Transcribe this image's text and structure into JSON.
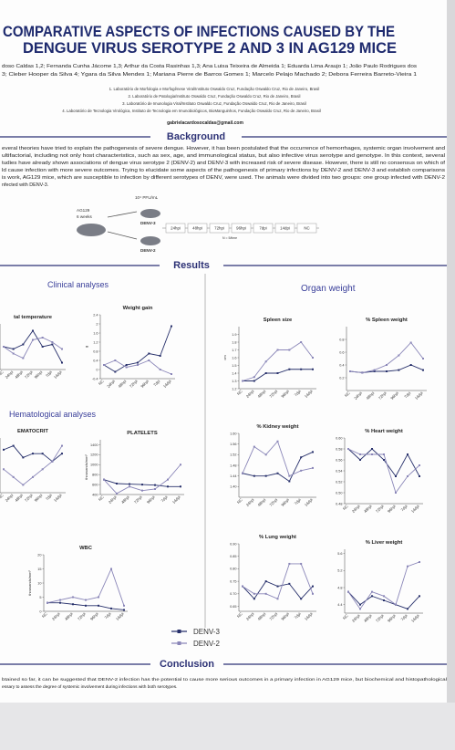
{
  "title_lines": [
    "COMPARATIVE ASPECTS OF INFECTIONS CAUSED BY THE",
    "DENGUE VIRUS SEROTYPE 2 AND 3 IN AG129 MICE"
  ],
  "authors_lines": [
    "doso Caldas 1,2; Fernanda Cunha Jácome 1,3; Arthur da Costa Rasinhas 1,3; Ana Luisa Teixeira de Almeida 1; Eduarda Lima Araujo 1; João Paulo Rodrigues dos",
    "3; Cleber Hooper da Silva 4; Ygara da Silva Mendes 1; Mariana Pierre de Barros Gomes 1; Marcelo Pelajo Machado 2; Debora Ferreira Barreto-Vieira 1"
  ],
  "affiliations": [
    "1. Laboratório de Morfologia e Morfogênese Viral/Instituto Oswaldo Cruz, Fundação Oswaldo Cruz, Rio de Janeiro, Brasil",
    "2. Laboratório de Patologia/Instituto Oswaldo Cruz, Fundação Oswaldo Cruz, Rio de Janeiro, Brasil",
    "3. Laboratório de Imunologia Viral/Instituto Oswaldo Cruz, Fundação Oswaldo Cruz, Rio de Janeiro, Brasil",
    "4. Laboratório de Tecnologia Virológica, Instituto de Tecnologia em Imunobiológicos, BioManguinhos, Fundação Oswaldo Cruz, Rio de Janeiro, Brasil"
  ],
  "email": "gabrielacardosocaldas@gmail.com",
  "sections": {
    "background": "Background",
    "results": "Results",
    "conclusion": "Conclusion"
  },
  "background_lines": [
    "everal theories have tried to explain the pathogenesis of severe dengue. However, it has been postulated that the occurrence of hemorrhages, systemic organ involvement and",
    "ultifactorial, including not only host characteristics, such as sex, age, and immunological status, but also infective virus serotype and genotype. In this context, several",
    "tudies have already shown associations of dengue virus serotype 2 (DENV-2) and DENV-3 with increased risk of severe disease. However, there is still no consensus on which of",
    "ld cause infection with more severe outcomes. Trying to elucidate some aspects of the pathogenesis of primary infections by DENV-2 and DENV-3 and establish comparisons",
    "is work, AG129 mice, which are susceptible to infection by different serotypes of DENV, were used. The animals were divided into two groups: one group infected with DENV-2",
    "nfected with DENV-3."
  ],
  "design": {
    "dose": "10⁴ PFU/mL",
    "mouse": "AG129",
    "age": "6 weeks",
    "groups": [
      "DENV-3",
      "DENV-2"
    ],
    "timepoints": [
      "24hpi",
      "48hpi",
      "72hpi",
      "96hpi",
      "7dpi",
      "14dpi",
      "NC"
    ],
    "n": "N = 5/time"
  },
  "subheadings": {
    "clinical": "Clinical analyses",
    "hematological": "Hematological analyses",
    "organ": "Organ weight"
  },
  "chart_data": [
    {
      "type": "line",
      "title": "tal temperature",
      "categories": [
        "NC",
        "24hpi",
        "48hpi",
        "72hpi",
        "96hpi",
        "7dpi",
        "14dpi"
      ],
      "ylim": [
        35.5,
        37.5
      ],
      "series": [
        {
          "name": "DENV-3",
          "color": "#27306b",
          "values": [
            36.5,
            36.4,
            36.6,
            37.2,
            36.5,
            36.6,
            35.8
          ]
        },
        {
          "name": "DENV-2",
          "color": "#8a86b8",
          "values": [
            36.5,
            36.2,
            36.0,
            36.8,
            36.9,
            36.7,
            36.4
          ]
        }
      ]
    },
    {
      "type": "line",
      "title": "Weight gain",
      "y_label": "g",
      "categories": [
        "NC",
        "24hpi",
        "48hpi",
        "72hpi",
        "96hpi",
        "7dpi",
        "14dpi"
      ],
      "ylim": [
        -0.4,
        2.4
      ],
      "yticks": [
        -0.4,
        0,
        0.4,
        0.8,
        1.2,
        1.6,
        2,
        2.4
      ],
      "series": [
        {
          "name": "DENV-3",
          "color": "#27306b",
          "values": [
            0.2,
            -0.1,
            0.2,
            0.3,
            0.7,
            0.6,
            1.9
          ]
        },
        {
          "name": "DENV-2",
          "color": "#8a86b8",
          "values": [
            0.2,
            0.4,
            0.1,
            0.2,
            0.4,
            0.0,
            -0.2
          ]
        }
      ]
    },
    {
      "type": "line",
      "title": "EMATOCRIT",
      "categories": [
        "NC",
        "24hpi",
        "48hpi",
        "72hpi",
        "96hpi",
        "7dpi",
        "14dpi"
      ],
      "ylim": [
        34,
        48
      ],
      "series": [
        {
          "name": "DENV-3",
          "color": "#27306b",
          "values": [
            45,
            46,
            43,
            44,
            44,
            42,
            44
          ]
        },
        {
          "name": "DENV-2",
          "color": "#8a86b8",
          "values": [
            40,
            38,
            36,
            38,
            40,
            42,
            46
          ]
        }
      ]
    },
    {
      "type": "line",
      "title": "PLATELETS",
      "y_label": "thousands/mm³",
      "categories": [
        "NC",
        "24hpi",
        "48hpi",
        "72hpi",
        "96hpi",
        "7dpi",
        "14dpi"
      ],
      "ylim": [
        400,
        1500
      ],
      "yticks": [
        400,
        600,
        800,
        1000,
        1200,
        1400
      ],
      "series": [
        {
          "name": "DENV-3",
          "color": "#27306b",
          "values": [
            700,
            620,
            610,
            600,
            590,
            560,
            560
          ]
        },
        {
          "name": "DENV-2",
          "color": "#8a86b8",
          "values": [
            700,
            420,
            560,
            480,
            510,
            700,
            1000
          ]
        }
      ]
    },
    {
      "type": "line",
      "title": "WBC",
      "y_label": "thousands/mm³",
      "categories": [
        "NC",
        "24hpi",
        "48hpi",
        "72hpi",
        "96hpi",
        "7dpi",
        "14dpi"
      ],
      "ylim": [
        0,
        20
      ],
      "yticks": [
        0,
        5,
        10,
        15,
        20
      ],
      "series": [
        {
          "name": "DENV-3",
          "color": "#27306b",
          "values": [
            3,
            3,
            2.5,
            2,
            2,
            1,
            0.5
          ]
        },
        {
          "name": "DENV-2",
          "color": "#8a86b8",
          "values": [
            3,
            4,
            5,
            4,
            5,
            15,
            2
          ]
        }
      ]
    },
    {
      "type": "line",
      "title": "Spleen size",
      "y_label": "cm",
      "categories": [
        "NC",
        "24hpi",
        "48hpi",
        "72hpi",
        "96hpi",
        "7dpi",
        "14dpi"
      ],
      "ylim": [
        1.2,
        2.0
      ],
      "yticks": [
        1.2,
        1.3,
        1.4,
        1.5,
        1.6,
        1.7,
        1.8,
        1.9
      ],
      "series": [
        {
          "name": "DENV-3",
          "color": "#27306b",
          "values": [
            1.3,
            1.3,
            1.4,
            1.4,
            1.45,
            1.45,
            1.45
          ]
        },
        {
          "name": "DENV-2",
          "color": "#8a86b8",
          "values": [
            1.3,
            1.35,
            1.55,
            1.7,
            1.7,
            1.8,
            1.6
          ]
        }
      ]
    },
    {
      "type": "line",
      "title": "% Spleen weight",
      "categories": [
        "NC",
        "24hpi",
        "48hpi",
        "72hpi",
        "96hpi",
        "7dpi",
        "14dpi"
      ],
      "ylim": [
        0,
        1
      ],
      "yticks": [
        0.2,
        0.4,
        0.6,
        0.8
      ],
      "series": [
        {
          "name": "DENV-3",
          "color": "#27306b",
          "values": [
            0.3,
            0.28,
            0.3,
            0.3,
            0.32,
            0.4,
            0.32
          ]
        },
        {
          "name": "DENV-2",
          "color": "#8a86b8",
          "values": [
            0.3,
            0.28,
            0.32,
            0.4,
            0.55,
            0.75,
            0.5
          ]
        }
      ]
    },
    {
      "type": "line",
      "title": "% Kidney weight",
      "categories": [
        "NC",
        "24hpi",
        "48hpi",
        "72hpi",
        "96hpi",
        "7dpi",
        "14dpi"
      ],
      "ylim": [
        1.36,
        1.6
      ],
      "yticks": [
        {
          "value": 1.4,
          "label": "1.40"
        },
        1.44,
        1.48,
        1.52,
        1.56,
        {
          "value": 1.6,
          "label": "1.60"
        }
      ],
      "series": [
        {
          "name": "DENV-3",
          "color": "#27306b",
          "values": [
            1.45,
            1.44,
            1.44,
            1.45,
            1.42,
            1.51,
            1.53
          ]
        },
        {
          "name": "DENV-2",
          "color": "#8a86b8",
          "values": [
            1.45,
            1.55,
            1.52,
            1.57,
            1.44,
            1.46,
            1.47
          ]
        }
      ]
    },
    {
      "type": "line",
      "title": "% Heart weight",
      "categories": [
        "NC",
        "24hpi",
        "48hpi",
        "72hpi",
        "96hpi",
        "7dpi",
        "14dpi"
      ],
      "ylim": [
        0.48,
        0.6
      ],
      "yticks": [
        0.48,
        {
          "value": 0.5,
          "label": "0.50"
        },
        0.52,
        0.54,
        0.56,
        0.58,
        {
          "value": 0.6,
          "label": "0.60"
        }
      ],
      "series": [
        {
          "name": "DENV-3",
          "color": "#27306b",
          "values": [
            0.58,
            0.56,
            0.58,
            0.56,
            0.53,
            0.57,
            0.53
          ]
        },
        {
          "name": "DENV-2",
          "color": "#8a86b8",
          "values": [
            0.58,
            0.57,
            0.57,
            0.57,
            0.5,
            0.53,
            0.55
          ]
        }
      ]
    },
    {
      "type": "line",
      "title": "% Lung weight",
      "categories": [
        "NC",
        "24hpi",
        "48hpi",
        "72hpi",
        "96hpi",
        "7dpi",
        "14dpi"
      ],
      "ylim": [
        0.63,
        0.9
      ],
      "yticks": [
        0.65,
        {
          "value": 0.7,
          "label": "0.70"
        },
        0.75,
        {
          "value": 0.8,
          "label": "0.80"
        },
        0.85,
        {
          "value": 0.9,
          "label": "0.90"
        }
      ],
      "series": [
        {
          "name": "DENV-3",
          "color": "#27306b",
          "values": [
            0.73,
            0.68,
            0.75,
            0.73,
            0.74,
            0.68,
            0.73
          ]
        },
        {
          "name": "DENV-2",
          "color": "#8a86b8",
          "values": [
            0.73,
            0.7,
            0.7,
            0.68,
            0.82,
            0.82,
            0.7
          ]
        }
      ]
    },
    {
      "type": "line",
      "title": "% Liver weight",
      "categories": [
        "NC",
        "24hpi",
        "48hpi",
        "72hpi",
        "96hpi",
        "7dpi",
        "14dpi"
      ],
      "ylim": [
        4.2,
        5.7
      ],
      "yticks": [
        4.4,
        4.8,
        5.2,
        5.6
      ],
      "series": [
        {
          "name": "DENV-3",
          "color": "#27306b",
          "values": [
            4.7,
            4.4,
            4.6,
            4.5,
            4.4,
            4.3,
            4.6
          ]
        },
        {
          "name": "DENV-2",
          "color": "#8a86b8",
          "values": [
            4.7,
            4.3,
            4.7,
            4.6,
            4.4,
            5.3,
            5.4
          ]
        }
      ]
    }
  ],
  "conclusion_lines": [
    "btained so far, it can be suggested that DENV-2 infection has the potential to cause more serious outcomes in a primary infection in AG129 mice, but biochemical and histopathological",
    "essary to assess the degree of systemic involvement during infections with both serotypes."
  ]
}
